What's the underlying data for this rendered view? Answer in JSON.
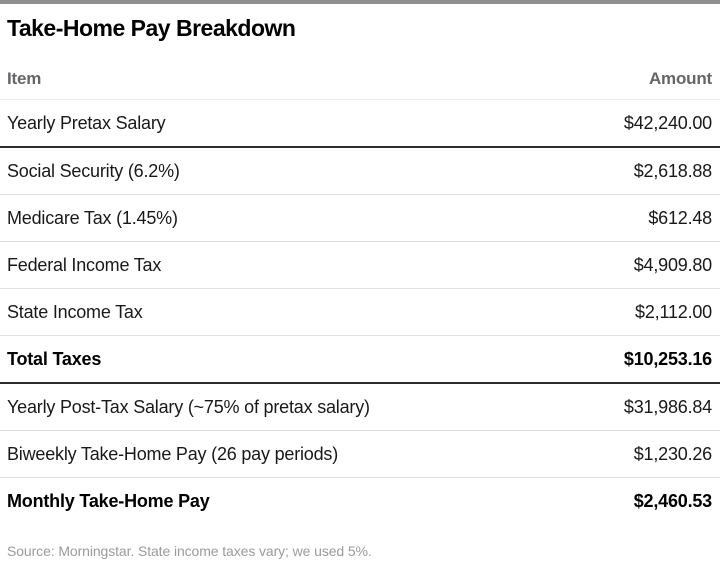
{
  "chart_data": {
    "type": "table",
    "title": "Take-Home Pay Breakdown",
    "columns": [
      "Item",
      "Amount"
    ],
    "rows": [
      {
        "item": "Yearly Pretax Salary",
        "amount": "$42,240.00",
        "value": 42240.0,
        "emphasis": false,
        "divider_after": "thick"
      },
      {
        "item": "Social Security (6.2%)",
        "amount": "$2,618.88",
        "value": 2618.88,
        "emphasis": false,
        "divider_after": "thin"
      },
      {
        "item": "Medicare Tax (1.45%)",
        "amount": "$612.48",
        "value": 612.48,
        "emphasis": false,
        "divider_after": "thin"
      },
      {
        "item": "Federal Income Tax",
        "amount": "$4,909.80",
        "value": 4909.8,
        "emphasis": false,
        "divider_after": "thin"
      },
      {
        "item": "State Income Tax",
        "amount": "$2,112.00",
        "value": 2112.0,
        "emphasis": false,
        "divider_after": "thin"
      },
      {
        "item": "Total Taxes",
        "amount": "$10,253.16",
        "value": 10253.16,
        "emphasis": true,
        "divider_after": "thick"
      },
      {
        "item": "Yearly Post-Tax Salary (~75% of pretax salary)",
        "amount": "$31,986.84",
        "value": 31986.84,
        "emphasis": false,
        "divider_after": "thin"
      },
      {
        "item": "Biweekly Take-Home Pay (26 pay periods)",
        "amount": "$1,230.26",
        "value": 1230.26,
        "emphasis": false,
        "divider_after": "thin"
      },
      {
        "item": "Monthly Take-Home Pay",
        "amount": "$2,460.53",
        "value": 2460.53,
        "emphasis": true,
        "divider_after": "none"
      }
    ],
    "source_note": "Source: Morningstar. State income taxes vary; we used 5%."
  },
  "colors": {
    "top_bar": "#8f8f8f",
    "title_text": "#000000",
    "header_text": "#666668",
    "row_text": "#191919",
    "thick_divider": "#2d2d2d",
    "thin_divider": "#e2e2e2",
    "source_text": "#9b9b9b",
    "background": "#ffffff"
  }
}
